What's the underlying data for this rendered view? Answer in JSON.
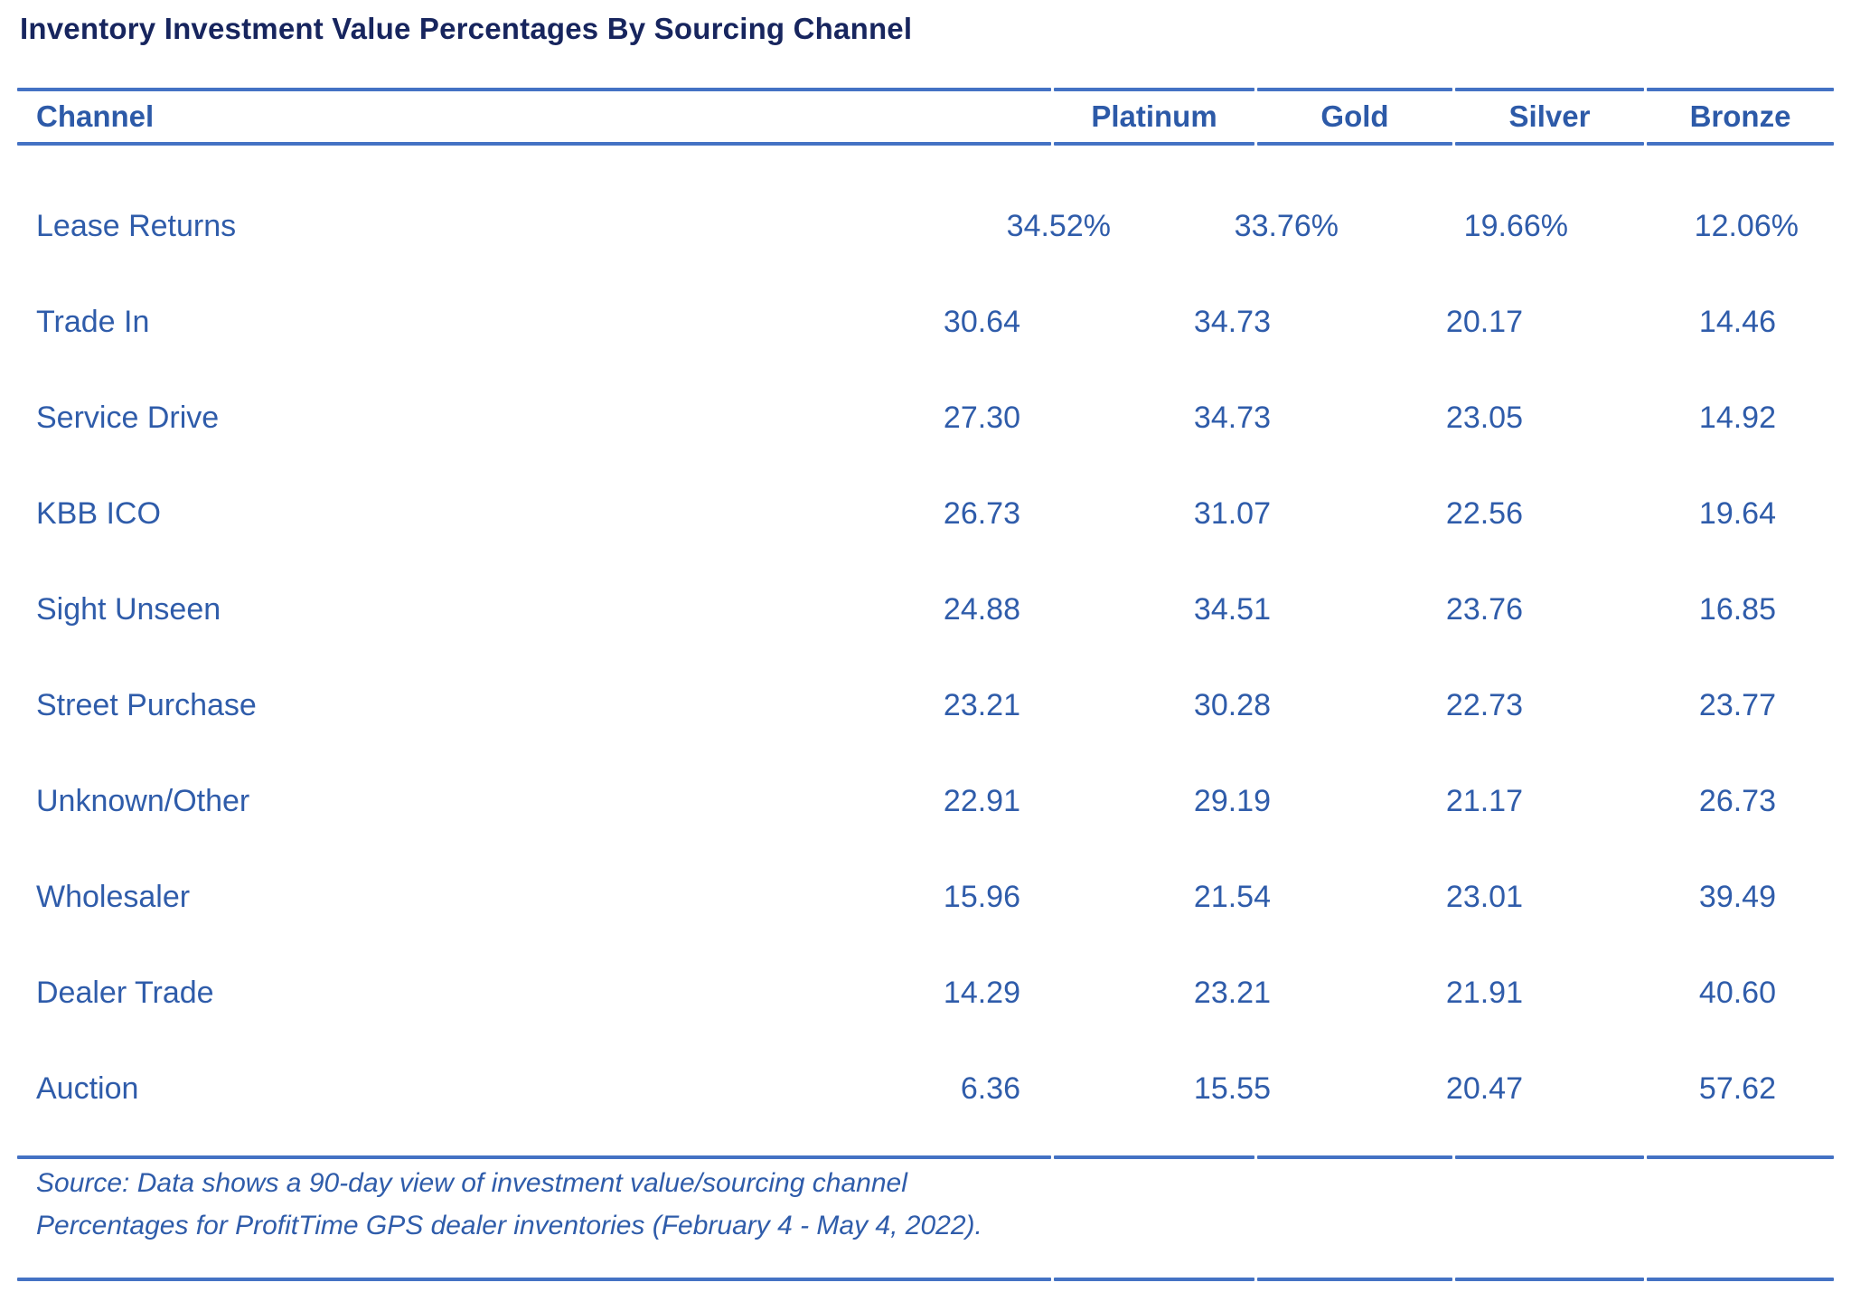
{
  "title": "Inventory Investment Value Percentages By Sourcing Channel",
  "table": {
    "columns": {
      "channel": "Channel",
      "platinum": "Platinum",
      "gold": "Gold",
      "silver": "Silver",
      "bronze": "Bronze"
    },
    "rows": [
      {
        "channel": "Lease Returns",
        "values": [
          "34.52%",
          "33.76%",
          "19.66%",
          "12.06%"
        ]
      },
      {
        "channel": "Trade In",
        "values": [
          "30.64",
          "34.73",
          "20.17",
          "14.46"
        ]
      },
      {
        "channel": "Service Drive",
        "values": [
          "27.30",
          "34.73",
          "23.05",
          "14.92"
        ]
      },
      {
        "channel": "KBB ICO",
        "values": [
          "26.73",
          "31.07",
          "22.56",
          "19.64"
        ]
      },
      {
        "channel": "Sight Unseen",
        "values": [
          "24.88",
          "34.51",
          "23.76",
          "16.85"
        ]
      },
      {
        "channel": "Street Purchase",
        "values": [
          "23.21",
          "30.28",
          "22.73",
          "23.77"
        ]
      },
      {
        "channel": "Unknown/Other",
        "values": [
          "22.91",
          "29.19",
          "21.17",
          "26.73"
        ]
      },
      {
        "channel": "Wholesaler",
        "values": [
          "15.96",
          "21.54",
          "23.01",
          "39.49"
        ]
      },
      {
        "channel": "Dealer Trade",
        "values": [
          "14.29",
          "23.21",
          "21.91",
          "40.60"
        ]
      },
      {
        "channel": "Auction",
        "values": [
          "6.36",
          "15.55",
          "20.47",
          "57.62"
        ]
      }
    ]
  },
  "source_note": {
    "line1": "Source: Data shows a 90-day view of investment value/sourcing channel",
    "line2": "Percentages for ProfitTime GPS dealer inventories (February 4 - May 4, 2022)."
  },
  "colors": {
    "title_text": "#17255e",
    "body_text": "#2f5caa",
    "header_text": "#2d5aa8",
    "divider": "#4472c4",
    "background": "#ffffff"
  },
  "chart_data": {
    "type": "table",
    "title": "Inventory Investment Value Percentages By Sourcing Channel",
    "columns": [
      "Channel",
      "Platinum",
      "Gold",
      "Silver",
      "Bronze"
    ],
    "rows": [
      [
        "Lease Returns",
        34.52,
        33.76,
        19.66,
        12.06
      ],
      [
        "Trade In",
        30.64,
        34.73,
        20.17,
        14.46
      ],
      [
        "Service Drive",
        27.3,
        34.73,
        23.05,
        14.92
      ],
      [
        "KBB ICO",
        26.73,
        31.07,
        22.56,
        19.64
      ],
      [
        "Sight Unseen",
        24.88,
        34.51,
        23.76,
        16.85
      ],
      [
        "Street Purchase",
        23.21,
        30.28,
        22.73,
        23.77
      ],
      [
        "Unknown/Other",
        22.91,
        29.19,
        21.17,
        26.73
      ],
      [
        "Wholesaler",
        15.96,
        21.54,
        23.01,
        39.49
      ],
      [
        "Dealer Trade",
        14.29,
        23.21,
        21.91,
        40.6
      ],
      [
        "Auction",
        6.36,
        15.55,
        20.47,
        57.62
      ]
    ],
    "units": "percent",
    "source": "Source: Data shows a 90-day view of investment value/sourcing channel Percentages for ProfitTime GPS dealer inventories (February 4 - May 4, 2022)."
  }
}
